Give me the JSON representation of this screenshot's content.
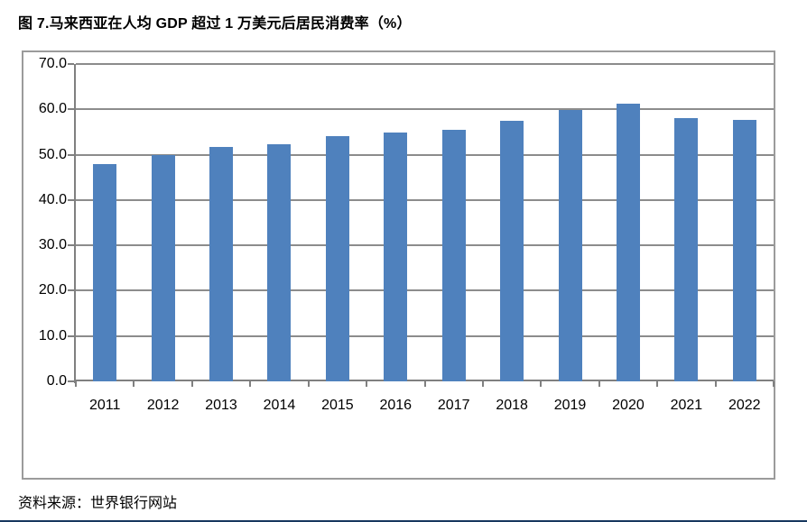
{
  "page": {
    "title": "图 7.马来西亚在人均 GDP 超过 1 万美元后居民消费率（%）",
    "source_note": "资料来源：世界银行网站"
  },
  "chart_data": {
    "type": "bar",
    "title": "图 7.马来西亚在人均 GDP 超过 1 万美元后居民消费率（%）",
    "categories": [
      "2011",
      "2012",
      "2013",
      "2014",
      "2015",
      "2016",
      "2017",
      "2018",
      "2019",
      "2020",
      "2021",
      "2022"
    ],
    "values": [
      48.0,
      50.0,
      51.8,
      52.4,
      54.0,
      54.9,
      55.4,
      57.4,
      59.8,
      61.3,
      58.0,
      57.6
    ],
    "xlabel": "",
    "ylabel": "",
    "ylim": [
      0,
      70
    ],
    "ytick_step": 10,
    "ytick_labels": [
      "0.0",
      "10.0",
      "20.0",
      "30.0",
      "40.0",
      "50.0",
      "60.0",
      "70.0"
    ],
    "grid": true,
    "legend_position": "none",
    "source": "资料来源：世界银行网站"
  },
  "colors": {
    "bar_fill": "#4f81bd",
    "gridline": "#8c8c8c",
    "axis_line": "#808080",
    "chart_border": "#9b9b9b",
    "text": "#000000",
    "bottom_rule": "#17375e"
  }
}
